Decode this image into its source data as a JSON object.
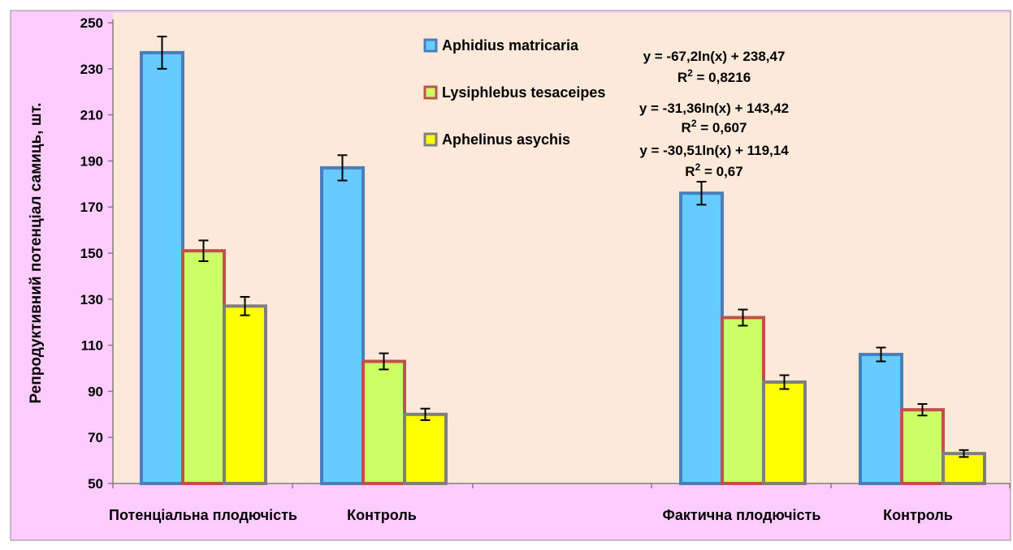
{
  "chart_data": {
    "type": "bar",
    "categories": [
      "Потенціальна плодючість",
      "Контроль",
      "Фактична плодючість",
      "Контроль"
    ],
    "series": [
      {
        "name": "Aphidius matricaria",
        "values": [
          237,
          187,
          176,
          106
        ],
        "errors": [
          7,
          5.5,
          5,
          3
        ],
        "fill": "#66ccff",
        "stroke": "#4a7ebb"
      },
      {
        "name": "Lysiphlebus tesaceipes",
        "values": [
          151,
          103,
          122,
          82
        ],
        "errors": [
          4.5,
          3.5,
          3.5,
          2.5
        ],
        "fill": "#ccff66",
        "stroke": "#c0504d"
      },
      {
        "name": "Aphelinus asychis",
        "values": [
          127,
          80,
          94,
          63
        ],
        "errors": [
          4,
          2.5,
          3,
          1.5
        ],
        "fill": "#ffff00",
        "stroke": "#7f7f7f"
      }
    ],
    "title": "",
    "xlabel": "",
    "ylabel": "Репродуктивний потенціал самиць, шт.",
    "ylim": [
      50,
      250
    ],
    "yticks": [
      50,
      70,
      90,
      110,
      130,
      150,
      170,
      190,
      210,
      230,
      250
    ],
    "legend_position": "top-center",
    "annotations": [
      {
        "equation": "y = -67,2ln(x) + 238,47",
        "r2_prefix": "R",
        "r2_sup": "2",
        "r2_value": " = 0,8216"
      },
      {
        "equation": "y = -31,36ln(x) + 143,42",
        "r2_prefix": "R",
        "r2_sup": "2",
        "r2_value": " = 0,607"
      },
      {
        "equation": "y = -30,51ln(x) + 119,14",
        "r2_prefix": "R",
        "r2_sup": "2",
        "r2_value": " = 0,67"
      }
    ],
    "colors": {
      "outer_background": "#ffccff",
      "plot_background": "#fde9d9"
    }
  }
}
